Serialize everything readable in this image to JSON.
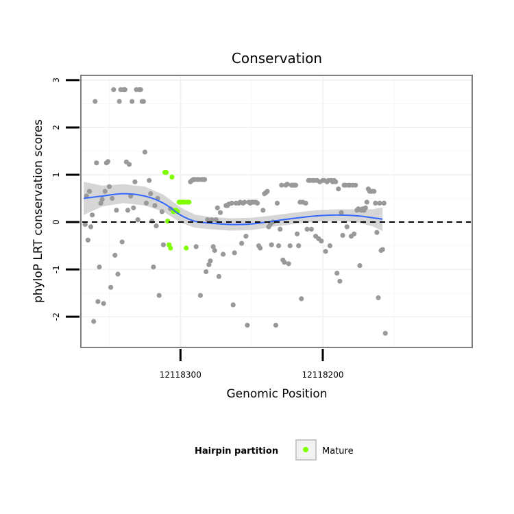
{
  "chart_data": {
    "type": "scatter",
    "title": "Conservation",
    "xlabel": "Genomic Position",
    "ylabel": "phyloP LRT conservation scores",
    "x_reversed": true,
    "xlim": [
      12118370,
      12118095
    ],
    "ylim": [
      -2.65,
      3.1
    ],
    "x_ticks": [
      {
        "value": 12118300,
        "label": "12118300"
      },
      {
        "value": 12118200,
        "label": "12118200"
      }
    ],
    "y_ticks": [
      {
        "value": 3,
        "label": "3"
      },
      {
        "value": 2,
        "label": "2"
      },
      {
        "value": 1,
        "label": "1"
      },
      {
        "value": 0,
        "label": "0"
      },
      {
        "value": -1,
        "label": "-1"
      },
      {
        "value": -2,
        "label": "-2"
      }
    ],
    "grid": true,
    "reference_line": {
      "y": 0,
      "style": "dashed",
      "color": "#000000"
    },
    "legend": {
      "title": "Hairpin partition",
      "position": "bottom",
      "entries": [
        {
          "label": "Mature",
          "color": "#7fff00"
        }
      ]
    },
    "colors": {
      "other": "#999999",
      "mature": "#7fff00",
      "smooth": "#3366ff",
      "band": "#c8c8c8"
    },
    "series": [
      {
        "category": "other",
        "points": [
          [
            12118367,
            -0.05
          ],
          [
            12118366,
            0.55
          ],
          [
            12118365,
            -0.38
          ],
          [
            12118364,
            0.65
          ],
          [
            12118363,
            -0.1
          ],
          [
            12118362,
            0.15
          ],
          [
            12118361,
            -2.1
          ],
          [
            12118360,
            2.55
          ],
          [
            12118359,
            1.25
          ],
          [
            12118358,
            -1.68
          ],
          [
            12118357,
            -0.95
          ],
          [
            12118356,
            0.4
          ],
          [
            12118355,
            0.48
          ],
          [
            12118354,
            -1.72
          ],
          [
            12118353,
            0.65
          ],
          [
            12118352,
            1.25
          ],
          [
            12118351,
            1.28
          ],
          [
            12118350,
            0.75
          ],
          [
            12118349,
            -1.38
          ],
          [
            12118348,
            0.5
          ],
          [
            12118347,
            2.8
          ],
          [
            12118346,
            -0.7
          ],
          [
            12118345,
            0.25
          ],
          [
            12118344,
            -1.1
          ],
          [
            12118343,
            2.55
          ],
          [
            12118342,
            2.8
          ],
          [
            12118341,
            -0.42
          ],
          [
            12118340,
            2.8
          ],
          [
            12118339,
            2.8
          ],
          [
            12118338,
            1.27
          ],
          [
            12118337,
            0.25
          ],
          [
            12118336,
            1.22
          ],
          [
            12118335,
            0.55
          ],
          [
            12118334,
            2.55
          ],
          [
            12118333,
            0.3
          ],
          [
            12118332,
            0.85
          ],
          [
            12118331,
            2.8
          ],
          [
            12118330,
            0.05
          ],
          [
            12118329,
            2.8
          ],
          [
            12118328,
            2.8
          ],
          [
            12118327,
            2.55
          ],
          [
            12118326,
            2.55
          ],
          [
            12118325,
            1.48
          ],
          [
            12118324,
            0.4
          ],
          [
            12118322,
            0.88
          ],
          [
            12118321,
            0.6
          ],
          [
            12118320,
            0.02
          ],
          [
            12118319,
            -0.95
          ],
          [
            12118318,
            0.35
          ],
          [
            12118317,
            -0.08
          ],
          [
            12118316,
            0.5
          ],
          [
            12118315,
            -1.55
          ],
          [
            12118313,
            0.22
          ],
          [
            12118312,
            -0.48
          ],
          [
            12118307,
            0.28
          ],
          [
            12118293,
            0.85
          ],
          [
            12118292,
            0.88
          ],
          [
            12118291,
            0.9
          ],
          [
            12118290,
            0.9
          ],
          [
            12118289,
            -0.52
          ],
          [
            12118288,
            0.9
          ],
          [
            12118287,
            0.9
          ],
          [
            12118286,
            -1.55
          ],
          [
            12118285,
            0.9
          ],
          [
            12118284,
            0.9
          ],
          [
            12118283,
            0.9
          ],
          [
            12118282,
            -1.05
          ],
          [
            12118281,
            0.05
          ],
          [
            12118280,
            -0.9
          ],
          [
            12118279,
            -0.82
          ],
          [
            12118278,
            0.05
          ],
          [
            12118277,
            -0.52
          ],
          [
            12118276,
            -0.6
          ],
          [
            12118275,
            0.05
          ],
          [
            12118274,
            0.3
          ],
          [
            12118273,
            -1.15
          ],
          [
            12118272,
            0.2
          ],
          [
            12118270,
            -0.68
          ],
          [
            12118268,
            0.35
          ],
          [
            12118267,
            0.35
          ],
          [
            12118266,
            0.38
          ],
          [
            12118264,
            0.4
          ],
          [
            12118263,
            -1.75
          ],
          [
            12118262,
            -0.65
          ],
          [
            12118261,
            0.4
          ],
          [
            12118259,
            0.4
          ],
          [
            12118258,
            0.42
          ],
          [
            12118257,
            -0.45
          ],
          [
            12118256,
            0.4
          ],
          [
            12118255,
            0.42
          ],
          [
            12118254,
            -0.3
          ],
          [
            12118253,
            -2.18
          ],
          [
            12118252,
            0.42
          ],
          [
            12118251,
            0.4
          ],
          [
            12118250,
            0.42
          ],
          [
            12118249,
            0.42
          ],
          [
            12118248,
            0.42
          ],
          [
            12118247,
            0.42
          ],
          [
            12118246,
            0.4
          ],
          [
            12118245,
            -0.5
          ],
          [
            12118244,
            -0.55
          ],
          [
            12118242,
            0.25
          ],
          [
            12118241,
            0.6
          ],
          [
            12118240,
            0.62
          ],
          [
            12118239,
            0.65
          ],
          [
            12118238,
            -0.1
          ],
          [
            12118237,
            -0.05
          ],
          [
            12118236,
            -0.48
          ],
          [
            12118235,
            0.0
          ],
          [
            12118233,
            -2.18
          ],
          [
            12118232,
            0.4
          ],
          [
            12118231,
            -0.5
          ],
          [
            12118230,
            -0.15
          ],
          [
            12118229,
            0.78
          ],
          [
            12118228,
            -0.8
          ],
          [
            12118227,
            -0.85
          ],
          [
            12118226,
            0.78
          ],
          [
            12118225,
            0.8
          ],
          [
            12118224,
            -0.88
          ],
          [
            12118223,
            -0.5
          ],
          [
            12118222,
            0.78
          ],
          [
            12118221,
            0.78
          ],
          [
            12118220,
            0.78
          ],
          [
            12118219,
            0.78
          ],
          [
            12118218,
            -0.25
          ],
          [
            12118217,
            -0.5
          ],
          [
            12118216,
            0.42
          ],
          [
            12118215,
            -1.62
          ],
          [
            12118214,
            0.42
          ],
          [
            12118212,
            0.4
          ],
          [
            12118211,
            -0.15
          ],
          [
            12118210,
            0.88
          ],
          [
            12118209,
            0.88
          ],
          [
            12118208,
            -0.15
          ],
          [
            12118207,
            0.88
          ],
          [
            12118206,
            0.88
          ],
          [
            12118205,
            -0.3
          ],
          [
            12118204,
            0.88
          ],
          [
            12118203,
            -0.35
          ],
          [
            12118202,
            0.85
          ],
          [
            12118201,
            -0.4
          ],
          [
            12118200,
            0.88
          ],
          [
            12118199,
            0.88
          ],
          [
            12118198,
            -0.62
          ],
          [
            12118197,
            0.85
          ],
          [
            12118196,
            0.88
          ],
          [
            12118195,
            -0.5
          ],
          [
            12118194,
            0.88
          ],
          [
            12118193,
            0.85
          ],
          [
            12118192,
            0.88
          ],
          [
            12118191,
            0.85
          ],
          [
            12118190,
            -1.08
          ],
          [
            12118189,
            0.7
          ],
          [
            12118188,
            -1.25
          ],
          [
            12118187,
            0.2
          ],
          [
            12118186,
            -0.28
          ],
          [
            12118185,
            0.78
          ],
          [
            12118184,
            0.78
          ],
          [
            12118183,
            -0.1
          ],
          [
            12118182,
            0.78
          ],
          [
            12118181,
            0.78
          ],
          [
            12118180,
            -0.3
          ],
          [
            12118179,
            0.78
          ],
          [
            12118178,
            -0.25
          ],
          [
            12118177,
            0.78
          ],
          [
            12118176,
            0.25
          ],
          [
            12118175,
            0.28
          ],
          [
            12118174,
            -0.92
          ],
          [
            12118173,
            0.25
          ],
          [
            12118172,
            0.28
          ],
          [
            12118171,
            0.25
          ],
          [
            12118170,
            0.3
          ],
          [
            12118169,
            0.42
          ],
          [
            12118168,
            0.7
          ],
          [
            12118167,
            0.65
          ],
          [
            12118166,
            0.65
          ],
          [
            12118165,
            0.65
          ],
          [
            12118164,
            0.65
          ],
          [
            12118163,
            0.4
          ],
          [
            12118162,
            -0.22
          ],
          [
            12118161,
            -1.6
          ],
          [
            12118160,
            0.4
          ],
          [
            12118159,
            -0.6
          ],
          [
            12118158,
            -0.58
          ],
          [
            12118157,
            0.4
          ],
          [
            12118156,
            -2.35
          ]
        ]
      },
      {
        "category": "Mature",
        "points": [
          [
            12118311,
            1.05
          ],
          [
            12118310,
            1.05
          ],
          [
            12118309,
            0.02
          ],
          [
            12118308,
            -0.48
          ],
          [
            12118307,
            -0.55
          ],
          [
            12118306,
            0.95
          ],
          [
            12118305,
            0.22
          ],
          [
            12118304,
            0.25
          ],
          [
            12118303,
            0.25
          ],
          [
            12118302,
            0.22
          ],
          [
            12118301,
            0.42
          ],
          [
            12118300,
            0.42
          ],
          [
            12118299,
            0.42
          ],
          [
            12118298,
            0.42
          ],
          [
            12118297,
            0.42
          ],
          [
            12118296,
            -0.55
          ],
          [
            12118295,
            0.42
          ],
          [
            12118294,
            0.42
          ]
        ]
      }
    ],
    "smooth": {
      "x": [
        12118368,
        12118355,
        12118340,
        12118325,
        12118312,
        12118300,
        12118290,
        12118280,
        12118265,
        12118250,
        12118235,
        12118220,
        12118205,
        12118190,
        12118175,
        12118165,
        12118158
      ],
      "y": [
        0.5,
        0.55,
        0.6,
        0.55,
        0.4,
        0.15,
        0.02,
        -0.02,
        -0.05,
        -0.04,
        0.02,
        0.08,
        0.13,
        0.15,
        0.13,
        0.09,
        0.06
      ],
      "band_half_width": [
        0.35,
        0.22,
        0.2,
        0.2,
        0.18,
        0.16,
        0.14,
        0.13,
        0.13,
        0.13,
        0.12,
        0.12,
        0.12,
        0.12,
        0.14,
        0.18,
        0.25
      ]
    }
  }
}
